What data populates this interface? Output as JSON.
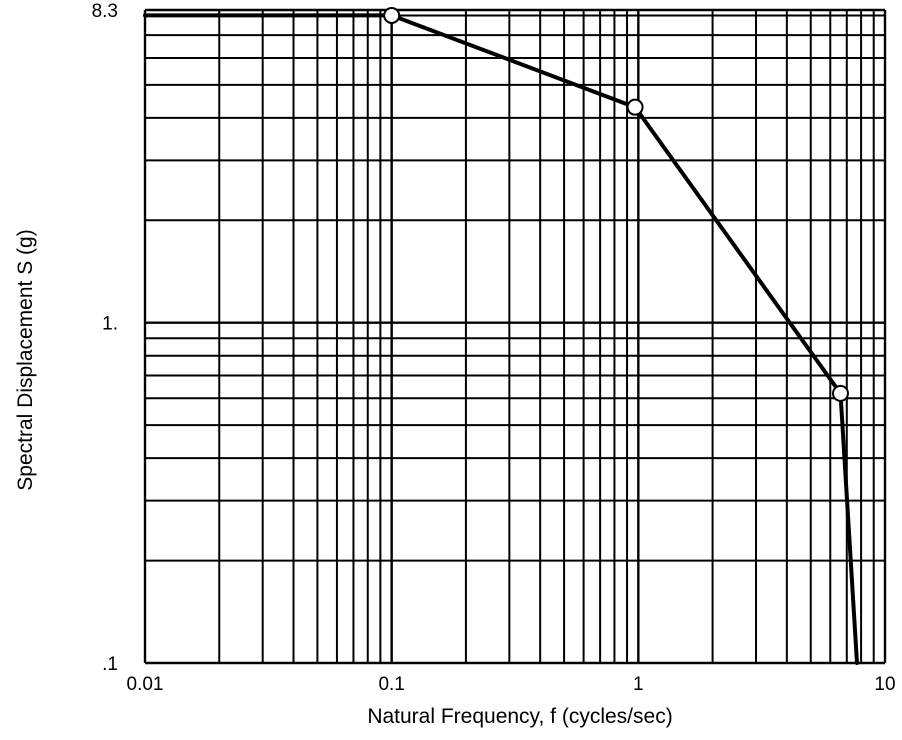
{
  "chart_data": {
    "type": "line",
    "xscale": "log",
    "yscale": "log",
    "xlim": [
      0.01,
      10
    ],
    "ylim": [
      0.1,
      8.3
    ],
    "xlabel": "Natural Frequency, f (cycles/sec)",
    "ylabel": "Spectral Displacement S (g)",
    "xticks": [
      {
        "value": 0.01,
        "label": "0.01"
      },
      {
        "value": 0.1,
        "label": "0.1"
      },
      {
        "value": 1,
        "label": "1"
      },
      {
        "value": 10,
        "label": "10"
      }
    ],
    "yticks": [
      {
        "value": 0.1,
        "label": ".1"
      },
      {
        "value": 1,
        "label": "1."
      },
      {
        "value": 8.3,
        "label": "8.3"
      }
    ],
    "grid": true,
    "line_color": "#000000",
    "series": [
      {
        "x": [
          0.01,
          0.1,
          0.97,
          6.6,
          7.7
        ],
        "y": [
          8.0,
          8.0,
          4.3,
          0.62,
          0.1
        ]
      }
    ],
    "markers": [
      {
        "x": 0.1,
        "y": 8.0
      },
      {
        "x": 0.97,
        "y": 4.3
      },
      {
        "x": 6.6,
        "y": 0.62
      }
    ]
  }
}
